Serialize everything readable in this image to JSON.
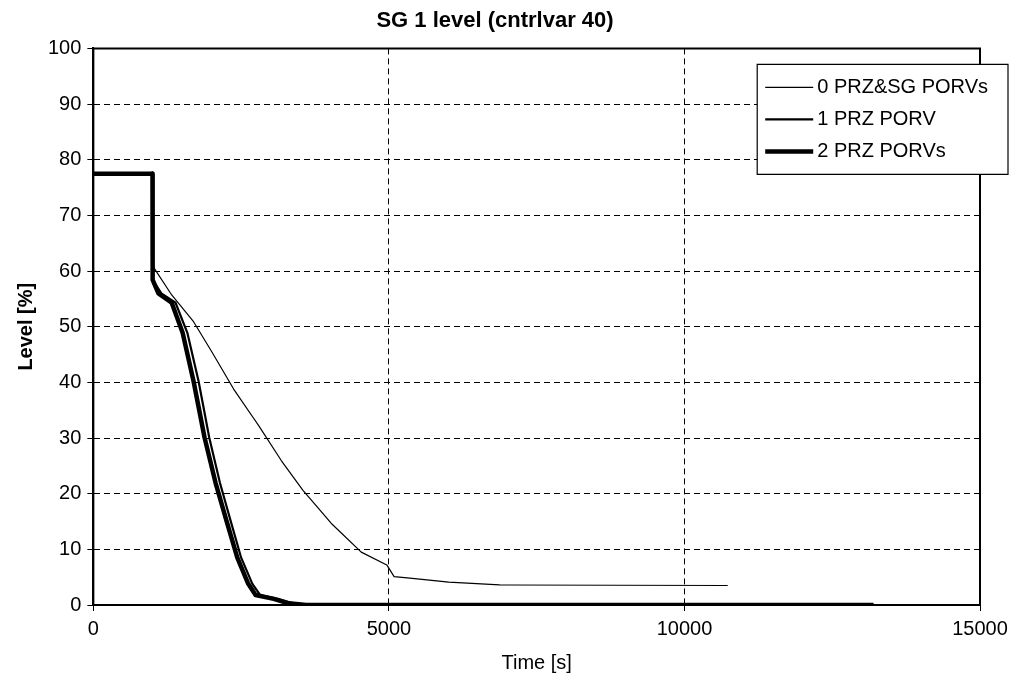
{
  "chart_data": {
    "type": "line",
    "title": "SG 1 level (cntrlvar 40)",
    "xlabel": "Time [s]",
    "ylabel": "Level [%]",
    "xlim": [
      0,
      15000
    ],
    "xticks": [
      0,
      5000,
      10000,
      15000
    ],
    "ylim": [
      0,
      100
    ],
    "yticks": [
      0,
      10,
      20,
      30,
      40,
      50,
      60,
      70,
      80,
      90,
      100
    ],
    "grid": true,
    "line_style": "solid",
    "marker": "none",
    "legend": "top right",
    "series": [
      {
        "name": "0 PRZ&SG PORVs",
        "color": "#000000",
        "x": [
          0,
          1000,
          1017,
          1325,
          1695,
          2003,
          2373,
          2805,
          3176,
          3546,
          4040,
          4532,
          4964,
          5088,
          5396,
          6012,
          6874,
          10732
        ],
        "values": [
          77.5,
          77.5,
          60.7,
          55.7,
          50.9,
          45.5,
          38.8,
          32.1,
          26.0,
          20.6,
          14.5,
          9.5,
          7.2,
          5.1,
          4.8,
          4.1,
          3.6,
          3.5
        ]
      },
      {
        "name": "1 PRZ PORV",
        "color": "#000000",
        "x": [
          0,
          1000,
          1003,
          1150,
          1390,
          1590,
          1780,
          1960,
          2140,
          2320,
          2500,
          2690,
          2820,
          3120,
          3380,
          3700,
          14600
        ],
        "values": [
          77.5,
          77.5,
          58.4,
          56,
          54.3,
          48.9,
          40.2,
          30.1,
          22.0,
          15.2,
          8.5,
          3.8,
          1.8,
          1.1,
          0.3,
          0,
          0
        ]
      },
      {
        "name": "2 PRZ PORVs",
        "color": "#000000",
        "x": [
          0,
          1000,
          1003,
          1100,
          1325,
          1510,
          1695,
          1881,
          2066,
          2250,
          2435,
          2620,
          2744,
          3052,
          3299,
          3600,
          13200
        ],
        "values": [
          77.5,
          77.5,
          58.4,
          56,
          54.3,
          48.9,
          40.2,
          30.1,
          22.0,
          15.2,
          8.5,
          3.8,
          1.8,
          1.1,
          0.3,
          0,
          0
        ]
      }
    ]
  }
}
